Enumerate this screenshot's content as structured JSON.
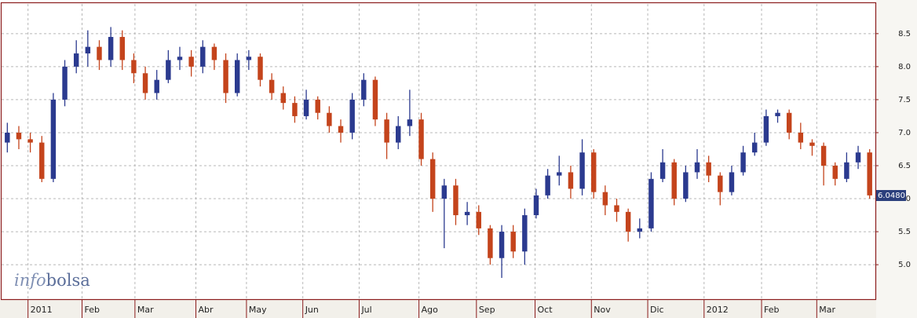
{
  "chart_data": {
    "type": "candlestick",
    "xlim": [
      0,
      76
    ],
    "xticks": [
      {
        "value": 2.3,
        "label": "2011"
      },
      {
        "value": 7,
        "label": "Feb"
      },
      {
        "value": 11.6,
        "label": "Mar"
      },
      {
        "value": 16.9,
        "label": "Abr"
      },
      {
        "value": 21.3,
        "label": "May"
      },
      {
        "value": 26.2,
        "label": "Jun"
      },
      {
        "value": 31.1,
        "label": "Jul"
      },
      {
        "value": 36.3,
        "label": "Ago"
      },
      {
        "value": 41.3,
        "label": "Sep"
      },
      {
        "value": 46.4,
        "label": "Oct"
      },
      {
        "value": 51.3,
        "label": "Nov"
      },
      {
        "value": 56.2,
        "label": "Dic"
      },
      {
        "value": 61.1,
        "label": "2012"
      },
      {
        "value": 66.1,
        "label": "Feb"
      },
      {
        "value": 70.9,
        "label": "Mar"
      }
    ],
    "ylim": [
      4.49,
      8.95
    ],
    "yticks": [
      {
        "value": 5,
        "label": "5.0"
      },
      {
        "value": 5.5,
        "label": "5.5"
      },
      {
        "value": 6,
        "label": "6.0"
      },
      {
        "value": 6.5,
        "label": "6.5"
      },
      {
        "value": 7,
        "label": "7.0"
      },
      {
        "value": 7.5,
        "label": "7.5"
      },
      {
        "value": 8,
        "label": "8.0"
      },
      {
        "value": 8.5,
        "label": "8.5"
      }
    ],
    "grid": true,
    "up_color": "#2b3a8f",
    "down_color": "#c4441c",
    "open": [
      6.85,
      7.0,
      6.9,
      6.85,
      6.3,
      7.5,
      8.0,
      8.2,
      8.3,
      8.1,
      8.45,
      8.1,
      7.9,
      7.6,
      7.8,
      8.1,
      8.15,
      8.0,
      8.3,
      8.1,
      7.6,
      8.1,
      8.15,
      7.8,
      7.6,
      7.45,
      7.25,
      7.5,
      7.3,
      7.1,
      7.0,
      7.5,
      7.8,
      7.2,
      6.85,
      7.1,
      7.2,
      6.6,
      6.0,
      6.2,
      5.75,
      5.8,
      5.55,
      5.1,
      5.5,
      5.2,
      5.75,
      6.05,
      6.35,
      6.4,
      6.15,
      6.7,
      6.1,
      5.9,
      5.8,
      5.5,
      5.55,
      6.3,
      6.55,
      6.0,
      6.4,
      6.55,
      6.35,
      6.1,
      6.4,
      6.7,
      6.85,
      7.25,
      7.3,
      7.0,
      6.85,
      6.8,
      6.5,
      6.3,
      6.55,
      6.7
    ],
    "high": [
      7.15,
      7.1,
      7.0,
      6.95,
      7.6,
      8.1,
      8.4,
      8.55,
      8.4,
      8.6,
      8.55,
      8.2,
      8.0,
      7.95,
      8.25,
      8.3,
      8.25,
      8.4,
      8.35,
      8.2,
      8.2,
      8.25,
      8.2,
      7.9,
      7.7,
      7.55,
      7.65,
      7.55,
      7.4,
      7.2,
      7.6,
      7.9,
      7.85,
      7.3,
      7.25,
      7.65,
      7.3,
      6.7,
      6.3,
      6.3,
      5.95,
      5.9,
      5.6,
      5.6,
      5.6,
      5.85,
      6.15,
      6.45,
      6.65,
      6.5,
      6.9,
      6.75,
      6.2,
      6.0,
      5.85,
      5.7,
      6.4,
      6.75,
      6.6,
      6.5,
      6.75,
      6.65,
      6.4,
      6.5,
      6.8,
      7.0,
      7.35,
      7.35,
      7.35,
      7.15,
      6.9,
      6.85,
      6.55,
      6.7,
      6.8,
      6.75
    ],
    "low": [
      6.7,
      6.75,
      6.7,
      6.25,
      6.25,
      7.4,
      7.9,
      8.0,
      7.95,
      8.0,
      7.95,
      7.75,
      7.5,
      7.5,
      7.75,
      7.95,
      7.85,
      7.9,
      7.95,
      7.45,
      7.55,
      7.95,
      7.7,
      7.5,
      7.35,
      7.15,
      7.2,
      7.2,
      7.0,
      6.85,
      6.9,
      7.4,
      7.1,
      6.6,
      6.75,
      6.95,
      6.5,
      5.8,
      5.25,
      5.6,
      5.6,
      5.45,
      5.0,
      4.8,
      5.1,
      5.0,
      5.7,
      6.0,
      6.2,
      6.0,
      6.05,
      6.0,
      5.75,
      5.65,
      5.35,
      5.4,
      5.5,
      6.25,
      5.9,
      5.95,
      6.3,
      6.25,
      5.9,
      6.05,
      6.35,
      6.65,
      6.8,
      7.15,
      6.9,
      6.75,
      6.65,
      6.2,
      6.2,
      6.25,
      6.45,
      6.0
    ],
    "close": [
      7.0,
      6.9,
      6.85,
      6.3,
      7.5,
      8.0,
      8.2,
      8.3,
      8.1,
      8.45,
      8.1,
      7.9,
      7.6,
      7.8,
      8.1,
      8.15,
      8.0,
      8.3,
      8.1,
      7.6,
      8.1,
      8.15,
      7.8,
      7.6,
      7.45,
      7.25,
      7.5,
      7.3,
      7.1,
      7.0,
      7.5,
      7.8,
      7.2,
      6.85,
      7.1,
      7.2,
      6.6,
      6.0,
      6.2,
      5.75,
      5.8,
      5.55,
      5.1,
      5.5,
      5.2,
      5.75,
      6.05,
      6.35,
      6.4,
      6.15,
      6.7,
      6.1,
      5.9,
      5.8,
      5.5,
      5.55,
      6.3,
      6.55,
      6.0,
      6.4,
      6.55,
      6.35,
      6.1,
      6.4,
      6.7,
      6.85,
      7.25,
      7.3,
      7.0,
      6.85,
      6.8,
      6.5,
      6.3,
      6.55,
      6.7,
      6.05
    ],
    "last_price": {
      "value": 6.048,
      "label": "6.0480"
    }
  },
  "logo": {
    "prefix": "info",
    "suffix": "bolsa"
  }
}
